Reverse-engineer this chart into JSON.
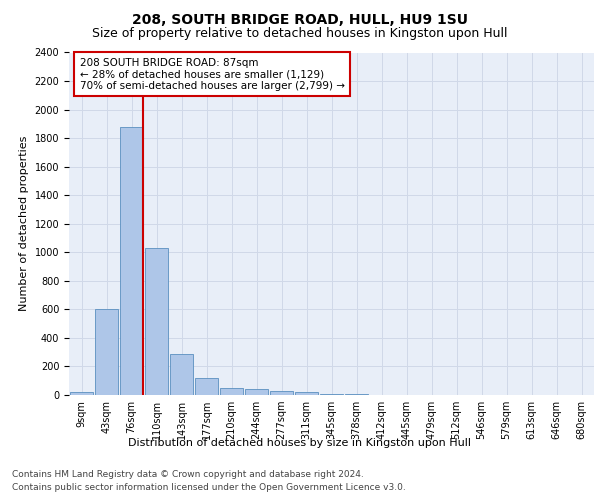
{
  "title1": "208, SOUTH BRIDGE ROAD, HULL, HU9 1SU",
  "title2": "Size of property relative to detached houses in Kingston upon Hull",
  "xlabel": "Distribution of detached houses by size in Kingston upon Hull",
  "ylabel": "Number of detached properties",
  "footnote1": "Contains HM Land Registry data © Crown copyright and database right 2024.",
  "footnote2": "Contains public sector information licensed under the Open Government Licence v3.0.",
  "bar_labels": [
    "9sqm",
    "43sqm",
    "76sqm",
    "110sqm",
    "143sqm",
    "177sqm",
    "210sqm",
    "244sqm",
    "277sqm",
    "311sqm",
    "345sqm",
    "378sqm",
    "412sqm",
    "445sqm",
    "479sqm",
    "512sqm",
    "546sqm",
    "579sqm",
    "613sqm",
    "646sqm",
    "680sqm"
  ],
  "bar_values": [
    20,
    600,
    1880,
    1030,
    290,
    120,
    50,
    45,
    25,
    20,
    5,
    5,
    2,
    2,
    2,
    0,
    0,
    0,
    0,
    0,
    0
  ],
  "bar_color": "#aec6e8",
  "bar_edgecolor": "#5a8fc0",
  "grid_color": "#d0d8e8",
  "background_color": "#e8eef8",
  "vline_color": "#cc0000",
  "annotation_text": "208 SOUTH BRIDGE ROAD: 87sqm\n← 28% of detached houses are smaller (1,129)\n70% of semi-detached houses are larger (2,799) →",
  "annotation_box_color": "#cc0000",
  "ylim": [
    0,
    2400
  ],
  "yticks": [
    0,
    200,
    400,
    600,
    800,
    1000,
    1200,
    1400,
    1600,
    1800,
    2000,
    2200,
    2400
  ],
  "title1_fontsize": 10,
  "title2_fontsize": 9,
  "xlabel_fontsize": 8,
  "ylabel_fontsize": 8,
  "tick_fontsize": 7,
  "annot_fontsize": 7.5,
  "footnote_fontsize": 6.5
}
